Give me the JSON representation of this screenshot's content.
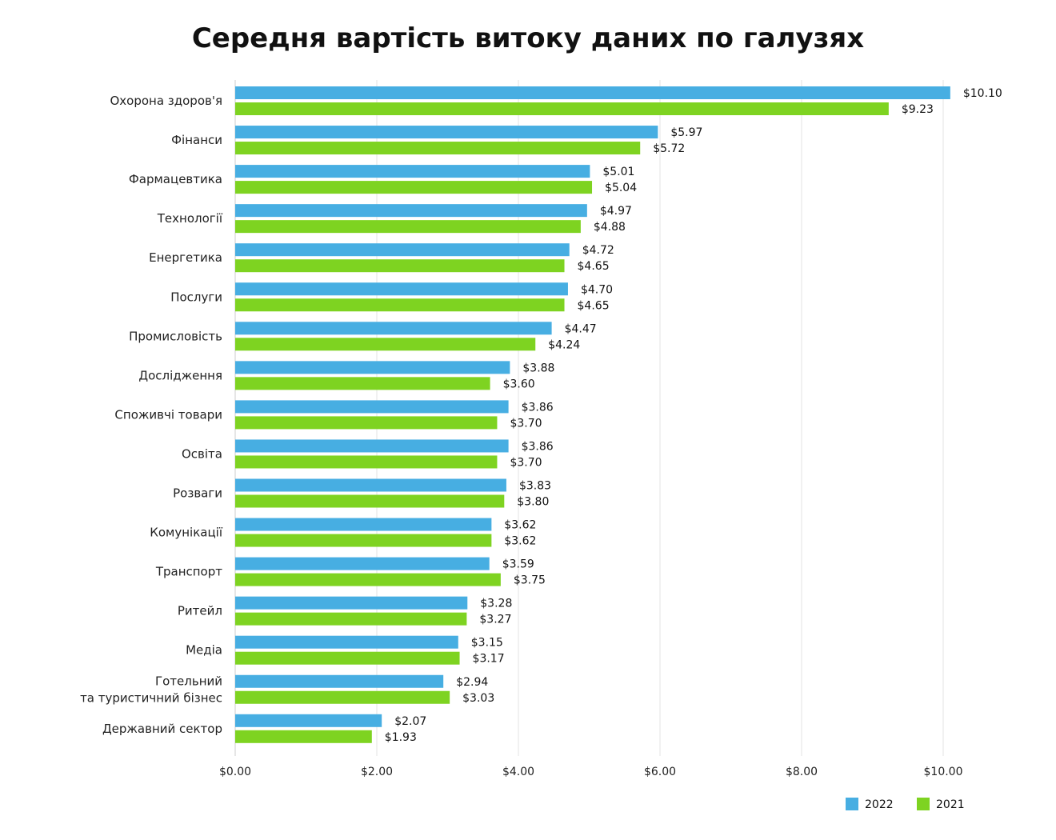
{
  "chart_data": {
    "type": "bar",
    "orientation": "horizontal",
    "title": "Середня вартість витоку даних по галузях",
    "categories": [
      [
        "Охорона здоров'я"
      ],
      [
        "Фінанси"
      ],
      [
        "Фармацевтика"
      ],
      [
        "Технології"
      ],
      [
        "Енергетика"
      ],
      [
        "Послуги"
      ],
      [
        "Промисловість"
      ],
      [
        "Дослідження"
      ],
      [
        "Споживчі товари"
      ],
      [
        "Освіта"
      ],
      [
        "Розваги"
      ],
      [
        "Комунікації"
      ],
      [
        "Транспорт"
      ],
      [
        "Ритейл"
      ],
      [
        "Медіа"
      ],
      [
        "Готельний",
        "та туристичний бізнес"
      ],
      [
        "Державний сектор"
      ]
    ],
    "series": [
      {
        "name": "2022",
        "color": "#47aee2",
        "values": [
          10.1,
          5.97,
          5.01,
          4.97,
          4.72,
          4.7,
          4.47,
          3.88,
          3.86,
          3.86,
          3.83,
          3.62,
          3.59,
          3.28,
          3.15,
          2.94,
          2.07
        ],
        "labels": [
          "$10.10",
          "$5.97",
          "$5.01",
          "$4.97",
          "$4.72",
          "$4.70",
          "$4.47",
          "$3.88",
          "$3.86",
          "$3.86",
          "$3.83",
          "$3.62",
          "$3.59",
          "$3.28",
          "$3.15",
          "$2.94",
          "$2.07"
        ]
      },
      {
        "name": "2021",
        "color": "#7ed321",
        "values": [
          9.23,
          5.72,
          5.04,
          4.88,
          4.65,
          4.65,
          4.24,
          3.6,
          3.7,
          3.7,
          3.8,
          3.62,
          3.75,
          3.27,
          3.17,
          3.03,
          1.93
        ],
        "labels": [
          "$9.23",
          "$5.72",
          "$5.04",
          "$4.88",
          "$4.65",
          "$4.65",
          "$4.24",
          "$3.60",
          "$3.70",
          "$3.70",
          "$3.80",
          "$3.62",
          "$3.75",
          "$3.27",
          "$3.17",
          "$3.03",
          "$1.93"
        ]
      }
    ],
    "xlim": [
      0,
      10
    ],
    "xticks": [
      0,
      2,
      4,
      6,
      8,
      10
    ],
    "xtick_labels": [
      "$0.00",
      "$2.00",
      "$4.00",
      "$6.00",
      "$8.00",
      "$10.00"
    ],
    "grid": true,
    "legend_position": "bottom-right",
    "xlabel": "",
    "ylabel": ""
  }
}
